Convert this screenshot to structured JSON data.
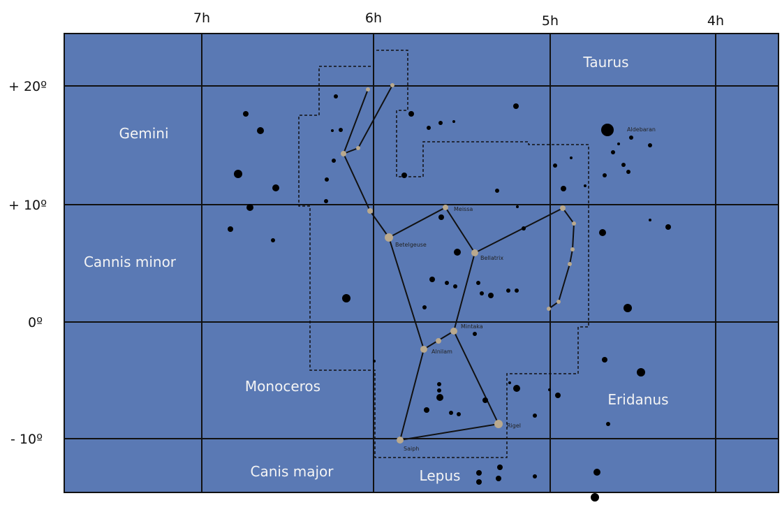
{
  "ra_labels": [
    "7h",
    "6h",
    "5h",
    "4h"
  ],
  "dec_labels": [
    "+ 20º",
    "+ 10º",
    "0º",
    "- 10º"
  ],
  "constellations": [
    "Taurus",
    "Gemini",
    "Cannis minor",
    "Monoceros",
    "Canis major",
    "Lepus",
    "Eridanus"
  ],
  "stars": [
    "Aldebaran",
    "Betelgeuse",
    "Bellatrix",
    "Meissa",
    "Mintaka",
    "Alnilam",
    "Rigel",
    "Saiph"
  ]
}
